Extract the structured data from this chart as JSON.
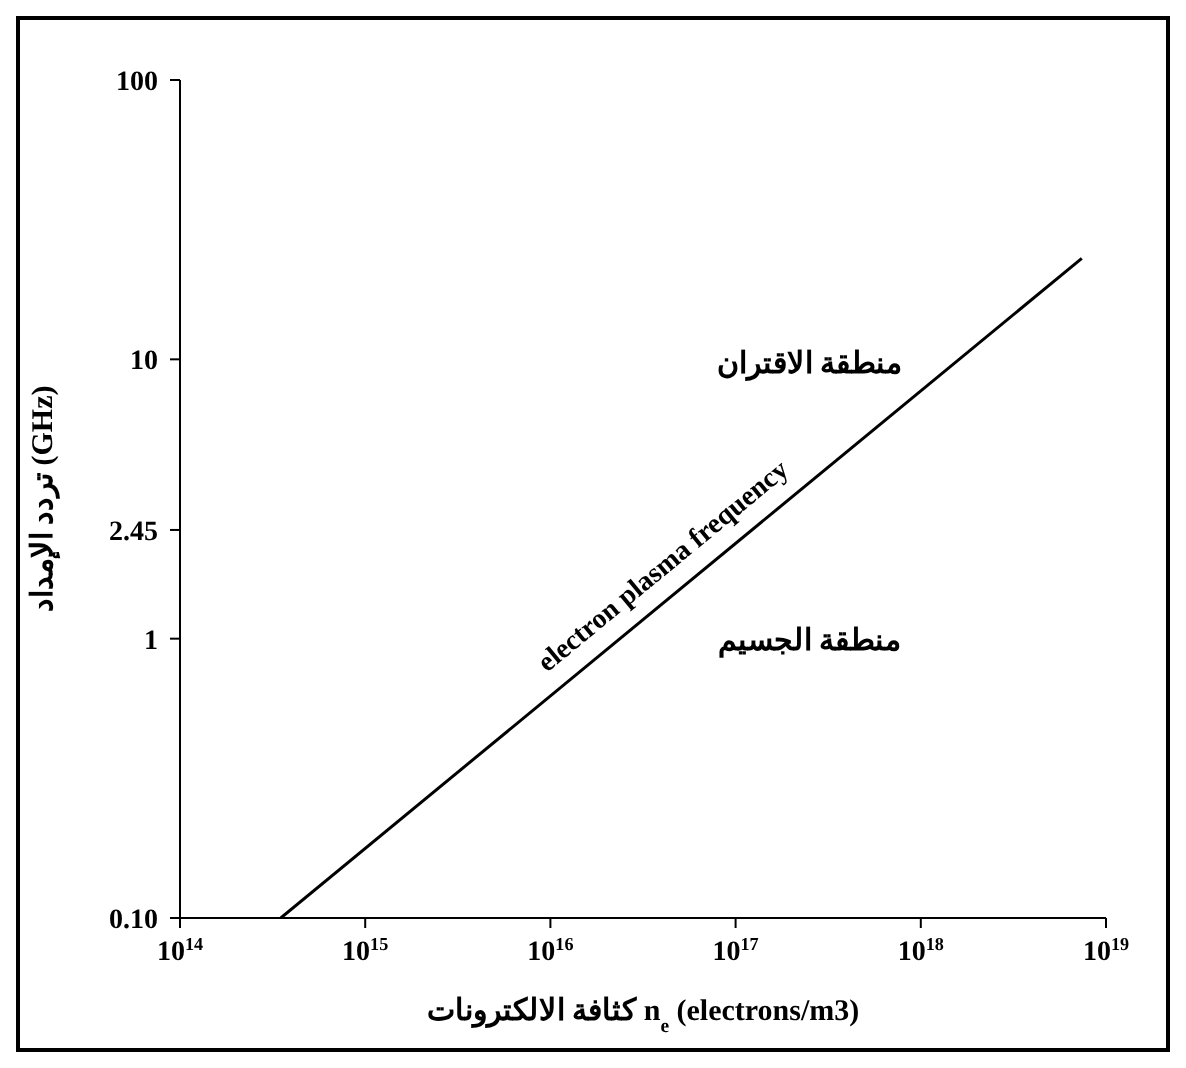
{
  "chart_data": {
    "type": "line",
    "log": "xy",
    "xlabel": "كثافة الالكترونات n$_{e}$ (electrons/m3)",
    "ylabel": "تردد الإمداد (GHz)",
    "xlim": [
      100000000000000.0,
      1e+19
    ],
    "ylim": [
      0.1,
      100
    ],
    "xticks": [
      {
        "value": 100000000000000.0,
        "label": "10$^{14}$"
      },
      {
        "value": 1000000000000000.0,
        "label": "10$^{15}$"
      },
      {
        "value": 1e+16,
        "label": "10$^{16}$"
      },
      {
        "value": 1e+17,
        "label": "10$^{17}$"
      },
      {
        "value": 1e+18,
        "label": "10$^{18}$"
      },
      {
        "value": 1e+19,
        "label": "10$^{19}$"
      }
    ],
    "yticks": [
      {
        "value": 0.1,
        "label": "0.10"
      },
      1,
      2.45,
      10,
      100
    ],
    "series": [
      {
        "name": "electron plasma frequency",
        "color": "#000000",
        "x": [
          350000000000000.0,
          7.4e+18
        ],
        "values": [
          0.1,
          23
        ]
      }
    ],
    "annotations": [
      "منطقة الاقتران",
      "منطقة الجسيم"
    ],
    "grid": false,
    "legend": false,
    "marker": "none",
    "line_style": "solid"
  }
}
